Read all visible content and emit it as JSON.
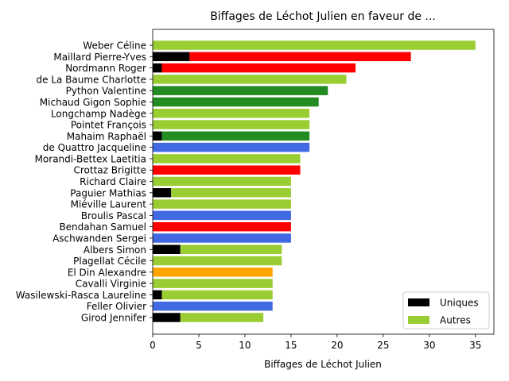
{
  "chart_data": {
    "type": "bar",
    "orientation": "horizontal",
    "stacked": true,
    "title": "Biffages de Léchot Julien en faveur de ...",
    "xlabel": "Biffages de Léchot Julien",
    "ylabel": "",
    "xlim": [
      0,
      37
    ],
    "xticks": [
      0,
      5,
      10,
      15,
      20,
      25,
      30,
      35
    ],
    "grid": false,
    "legend": {
      "placement": "lower-right",
      "entries": [
        {
          "label": "Uniques",
          "color": "#000000"
        },
        {
          "label": "Autres",
          "color": "#9acd32"
        }
      ]
    },
    "categories": [
      "Weber Céline",
      "Maillard Pierre-Yves",
      "Nordmann Roger",
      "de La Baume Charlotte",
      "Python Valentine",
      "Michaud Gigon Sophie",
      "Longchamp Nadège",
      "Pointet François",
      "Mahaim Raphaël",
      "de Quattro Jacqueline",
      "Morandi-Bettex Laetitia",
      "Crottaz Brigitte",
      "Richard Claire",
      "Paguier Mathias",
      "Miéville Laurent",
      "Broulis Pascal",
      "Bendahan Samuel",
      "Aschwanden Sergei",
      "Albers Simon",
      "Plagellat Cécile",
      "El Din Alexandre",
      "Cavalli Virginie",
      "Wasilewski-Rasca Laureline",
      "Feller Olivier",
      "Girod Jennifer"
    ],
    "series": [
      {
        "name": "Uniques",
        "values": [
          0,
          4,
          1,
          0,
          0,
          0,
          0,
          0,
          1,
          0,
          0,
          0,
          0,
          2,
          0,
          0,
          0,
          0,
          3,
          0,
          0,
          0,
          1,
          0,
          3
        ]
      },
      {
        "name": "Autres",
        "values": [
          35,
          24,
          21,
          21,
          19,
          18,
          17,
          17,
          16,
          17,
          16,
          16,
          15,
          13,
          15,
          15,
          15,
          15,
          11,
          14,
          13,
          13,
          12,
          13,
          9
        ]
      }
    ],
    "bar_colors": [
      "#9acd32",
      "#ff0000",
      "#ff0000",
      "#9acd32",
      "#228b22",
      "#228b22",
      "#9acd32",
      "#9acd32",
      "#228b22",
      "#4169e1",
      "#9acd32",
      "#ff0000",
      "#9acd32",
      "#9acd32",
      "#9acd32",
      "#4169e1",
      "#ff0000",
      "#4169e1",
      "#9acd32",
      "#9acd32",
      "#ffa500",
      "#9acd32",
      "#9acd32",
      "#4169e1",
      "#9acd32"
    ]
  }
}
